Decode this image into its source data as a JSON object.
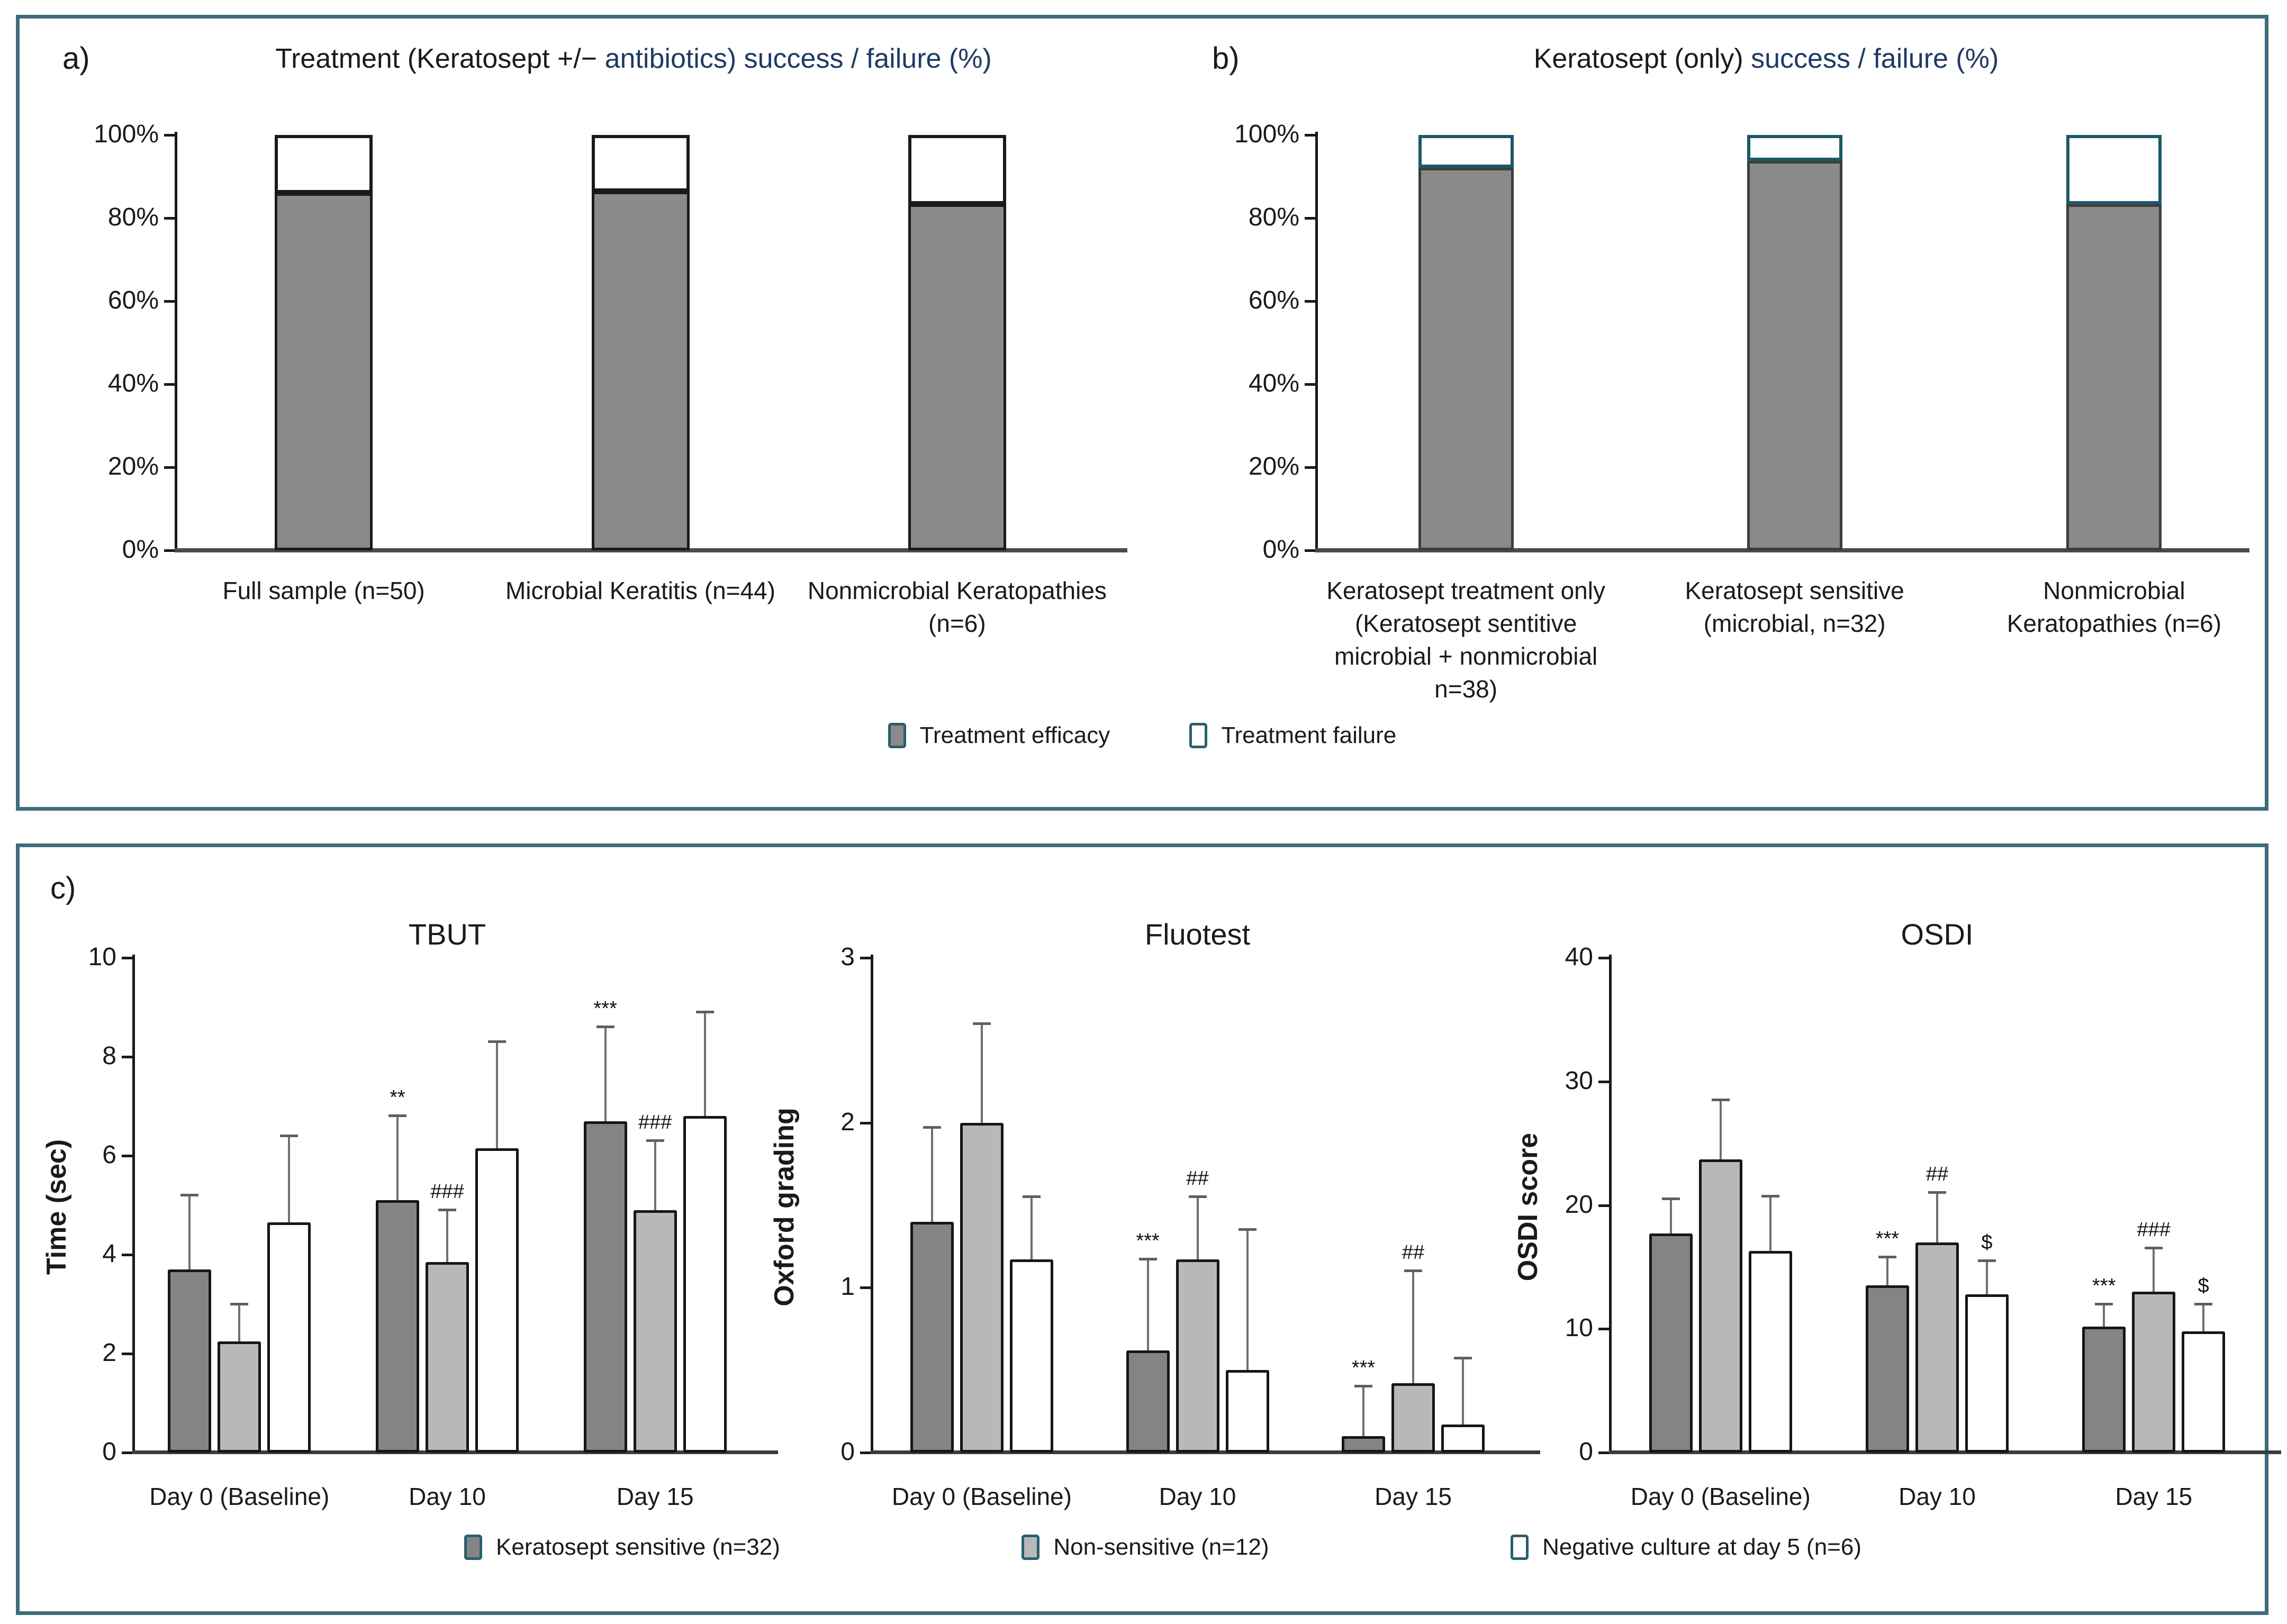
{
  "page": {
    "background": "#ffffff",
    "frame_color": "#3e6c7a",
    "navy": "#1f3a63"
  },
  "panel_a": {
    "label": "a)",
    "title_black": "Treatment (Keratosept +/− ",
    "title_blue": "antibiotics) success / failure (%)"
  },
  "panel_b": {
    "label": "b)",
    "title_black": "Keratosept (only) ",
    "title_blue": "success / failure (%)"
  },
  "panel_c": {
    "label": "c)"
  },
  "legend_top": {
    "items": [
      {
        "label": "Treatment efficacy",
        "fill": "#8a8a8a"
      },
      {
        "label": "Treatment failure",
        "fill": "#ffffff"
      }
    ]
  },
  "legend_bottom": {
    "items": [
      {
        "label": "Keratosept sensitive (n=32)",
        "fill": "#848484"
      },
      {
        "label": "Non-sensitive (n=12)",
        "fill": "#b8b8b8"
      },
      {
        "label": "Negative culture at day 5 (n=6)",
        "fill": "#ffffff"
      }
    ]
  },
  "chart_data": [
    {
      "id": "chart-a",
      "type": "stacked-bar-percent",
      "title": "Treatment (Keratosept +/− antibiotics) success / failure (%)",
      "categories": [
        "Full sample (n=50)",
        "Microbial Keratitis (n=44)",
        "Nonmicrobial Keratopathies (n=6)"
      ],
      "series": [
        {
          "name": "Treatment efficacy",
          "values": [
            86,
            86.4,
            83.3
          ]
        },
        {
          "name": "Treatment failure",
          "values": [
            14,
            13.6,
            16.7
          ]
        }
      ],
      "ylim": [
        0,
        100
      ],
      "yticks": [
        "0%",
        "20%",
        "40%",
        "60%",
        "80%",
        "100%"
      ],
      "grid": false,
      "bar_fill": "#8a8a8a",
      "success_border": "#1a1a1a",
      "fail_border": "#1a1a1a"
    },
    {
      "id": "chart-b",
      "type": "stacked-bar-percent",
      "title": "Keratosept (only) success / failure (%)",
      "categories": [
        "Keratosept treatment only  (Keratosept sentitive microbial + nonmicrobial n=38)",
        "Keratosept sensitive (microbial, n=32)",
        "Nonmicrobial Keratopathies (n=6)"
      ],
      "series": [
        {
          "name": "Treatment efficacy",
          "values": [
            92.1,
            93.8,
            83.3
          ]
        },
        {
          "name": "Treatment failure",
          "values": [
            7.9,
            6.2,
            16.7
          ]
        }
      ],
      "ylim": [
        0,
        100
      ],
      "yticks": [
        "0%",
        "20%",
        "40%",
        "60%",
        "80%",
        "100%"
      ],
      "grid": false,
      "bar_fill": "#8a8a8a",
      "success_border": "#3d3d3d",
      "fail_border": "#1c5968"
    },
    {
      "id": "chart-tbut",
      "type": "grouped-bar",
      "title": "TBUT",
      "ylabel": "Time (sec)",
      "ylim": [
        0,
        10
      ],
      "yticks": [
        0,
        2,
        4,
        6,
        8,
        10
      ],
      "grid": false,
      "categories": [
        "Day 0 (Baseline)",
        "Day 10",
        "Day 15"
      ],
      "series": [
        {
          "name": "Keratosept sensitive (n=32)",
          "fill": "#848484",
          "values": [
            3.7,
            5.1,
            6.7
          ],
          "err_top": [
            5.2,
            6.8,
            8.6
          ],
          "markers": [
            "",
            "**",
            "***"
          ]
        },
        {
          "name": "Non-sensitive (n=12)",
          "fill": "#b8b8b8",
          "values": [
            2.25,
            3.85,
            4.9
          ],
          "err_top": [
            3.0,
            4.9,
            6.3
          ],
          "markers": [
            "",
            "###",
            "###"
          ]
        },
        {
          "name": "Negative culture at day 5 (n=6)",
          "fill": "#ffffff",
          "values": [
            4.65,
            6.15,
            6.8
          ],
          "err_top": [
            6.4,
            8.3,
            8.9
          ],
          "markers": [
            "",
            "",
            ""
          ]
        }
      ]
    },
    {
      "id": "chart-fluotest",
      "type": "grouped-bar",
      "title": "Fluotest",
      "ylabel": "Oxford grading",
      "ylim": [
        0,
        3
      ],
      "yticks": [
        0,
        1,
        2,
        3
      ],
      "grid": false,
      "categories": [
        "Day 0 (Baseline)",
        "Day 10",
        "Day 15"
      ],
      "series": [
        {
          "name": "Keratosept sensitive (n=32)",
          "fill": "#848484",
          "values": [
            1.4,
            0.62,
            0.1
          ],
          "err_top": [
            1.97,
            1.17,
            0.4
          ],
          "markers": [
            "",
            "***",
            "***"
          ]
        },
        {
          "name": "Non-sensitive (n=12)",
          "fill": "#b8b8b8",
          "values": [
            2.0,
            1.17,
            0.42
          ],
          "err_top": [
            2.6,
            1.55,
            1.1
          ],
          "markers": [
            "",
            "##",
            "##"
          ]
        },
        {
          "name": "Negative culture at day 5 (n=6)",
          "fill": "#ffffff",
          "values": [
            1.17,
            0.5,
            0.17
          ],
          "err_top": [
            1.55,
            1.35,
            0.57
          ],
          "markers": [
            "",
            "",
            ""
          ]
        }
      ]
    },
    {
      "id": "chart-osdi",
      "type": "grouped-bar",
      "title": "OSDI",
      "ylabel": "OSDI score",
      "ylim": [
        0,
        40
      ],
      "yticks": [
        0,
        10,
        20,
        30,
        40
      ],
      "grid": false,
      "categories": [
        "Day 0 (Baseline)",
        "Day 10",
        "Day 15"
      ],
      "series": [
        {
          "name": "Keratosept sensitive (n=32)",
          "fill": "#848484",
          "values": [
            17.7,
            13.5,
            10.2
          ],
          "err_top": [
            20.5,
            15.8,
            12.0
          ],
          "markers": [
            "",
            "***",
            "***"
          ]
        },
        {
          "name": "Non-sensitive (n=12)",
          "fill": "#b8b8b8",
          "values": [
            23.7,
            17.0,
            13.0
          ],
          "err_top": [
            28.5,
            21.0,
            16.5
          ],
          "markers": [
            "",
            "##",
            "###"
          ]
        },
        {
          "name": "Negative culture at day 5 (n=6)",
          "fill": "#ffffff",
          "values": [
            16.3,
            12.8,
            9.8
          ],
          "err_top": [
            20.7,
            15.5,
            12.0
          ],
          "markers": [
            "",
            "$",
            "$"
          ]
        }
      ]
    }
  ]
}
